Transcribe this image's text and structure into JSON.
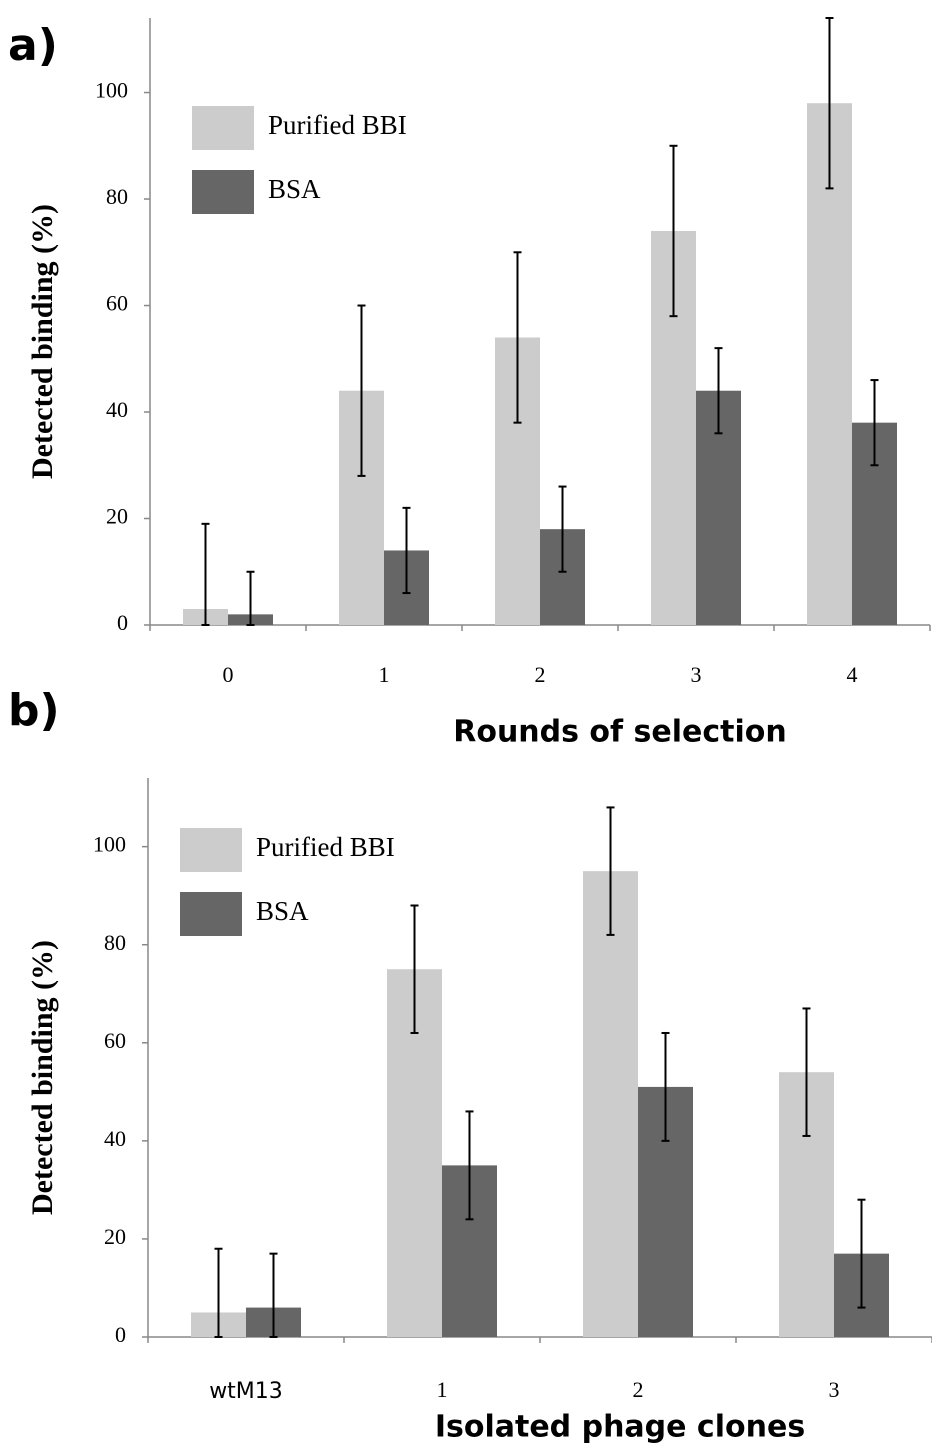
{
  "chart_data": [
    {
      "type": "bar",
      "panel_label": "a)",
      "y_label": "Detected binding (%)",
      "x_label": "Rounds of selection",
      "categories": [
        "0",
        "1",
        "2",
        "3",
        "4"
      ],
      "series": [
        {
          "name": "Purified BBI",
          "color": "#cccccc",
          "values": [
            3,
            44,
            54,
            74,
            98
          ],
          "errors": [
            16,
            16,
            16,
            16,
            16
          ]
        },
        {
          "name": "BSA",
          "color": "#666666",
          "values": [
            2,
            14,
            18,
            44,
            38
          ],
          "errors": [
            8,
            8,
            8,
            8,
            8
          ]
        }
      ],
      "ylim": [
        0,
        114
      ],
      "yticks": [
        0,
        20,
        40,
        60,
        80,
        100
      ],
      "legend": "upper left"
    },
    {
      "type": "bar",
      "panel_label": "b)",
      "y_label": "Detected binding (%)",
      "x_label": "Isolated phage clones",
      "categories": [
        "wtM13",
        "1",
        "2",
        "3"
      ],
      "series": [
        {
          "name": "Purified BBI",
          "color": "#cccccc",
          "values": [
            5,
            75,
            95,
            54
          ],
          "errors": [
            13,
            13,
            13,
            13
          ]
        },
        {
          "name": "BSA",
          "color": "#666666",
          "values": [
            6,
            35,
            51,
            17
          ],
          "errors": [
            11,
            11,
            11,
            11
          ]
        }
      ],
      "ylim": [
        0,
        114
      ],
      "yticks": [
        0,
        20,
        40,
        60,
        80,
        100
      ],
      "legend": "upper left"
    }
  ]
}
